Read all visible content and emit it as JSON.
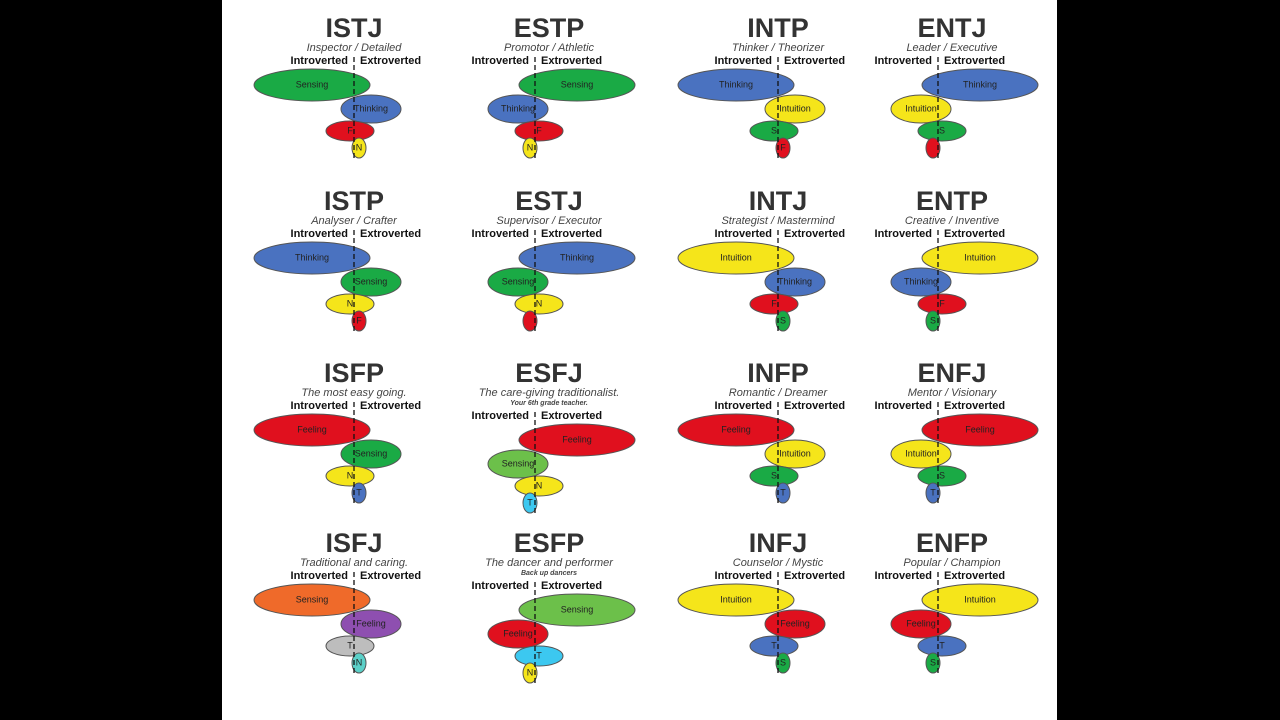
{
  "cards": [
    {
      "code": "ISTJ",
      "subtitle": "Inspector / Detailed",
      "introverted": "Introverted",
      "extroverted": "Extroverted",
      "functions": [
        {
          "label": "Sensing",
          "color": "#1aaa45"
        },
        {
          "label": "Thinking",
          "color": "#4a72c0"
        },
        {
          "label": "F",
          "color": "#e0101e"
        },
        {
          "label": "N",
          "color": "#f5e51a"
        }
      ]
    },
    {
      "code": "ESTP",
      "subtitle": "Promotor / Athletic",
      "introverted": "Introverted",
      "extroverted": "Extroverted",
      "functions": [
        {
          "label": "Sensing",
          "color": "#1aaa45"
        },
        {
          "label": "Thinking",
          "color": "#4a72c0"
        },
        {
          "label": "F",
          "color": "#e0101e"
        },
        {
          "label": "N",
          "color": "#f5e51a"
        }
      ]
    },
    {
      "code": "INTP",
      "subtitle": "Thinker / Theorizer",
      "introverted": "Introverted",
      "extroverted": "Extroverted",
      "functions": [
        {
          "label": "Thinking",
          "color": "#4a72c0"
        },
        {
          "label": "Intuition",
          "color": "#f5e51a"
        },
        {
          "label": "S",
          "color": "#1aaa45"
        },
        {
          "label": "F",
          "color": "#e0101e"
        }
      ]
    },
    {
      "code": "ENTJ",
      "subtitle": "Leader / Executive",
      "introverted": "Introverted",
      "extroverted": "Extroverted",
      "functions": [
        {
          "label": "Thinking",
          "color": "#4a72c0"
        },
        {
          "label": "Intuition",
          "color": "#f5e51a"
        },
        {
          "label": "S",
          "color": "#1aaa45"
        },
        {
          "color": "#e0101e"
        }
      ]
    },
    {
      "code": "ISTP",
      "subtitle": "Analyser / Crafter",
      "introverted": "Introverted",
      "extroverted": "Extroverted",
      "functions": [
        {
          "label": "Thinking",
          "color": "#4a72c0"
        },
        {
          "label": "Sensing",
          "color": "#1aaa45"
        },
        {
          "label": "N",
          "color": "#f5e51a"
        },
        {
          "label": "F",
          "color": "#e0101e"
        }
      ]
    },
    {
      "code": "ESTJ",
      "subtitle": "Supervisor / Executor",
      "introverted": "Introverted",
      "extroverted": "Extroverted",
      "functions": [
        {
          "label": "Thinking",
          "color": "#4a72c0"
        },
        {
          "label": "Sensing",
          "color": "#1aaa45"
        },
        {
          "label": "N",
          "color": "#f5e51a"
        },
        {
          "color": "#e0101e"
        }
      ]
    },
    {
      "code": "INTJ",
      "subtitle": "Strategist / Mastermind",
      "introverted": "Introverted",
      "extroverted": "Extroverted",
      "functions": [
        {
          "label": "Intuition",
          "color": "#f5e51a"
        },
        {
          "label": "Thinking",
          "color": "#4a72c0"
        },
        {
          "label": "F",
          "color": "#e0101e"
        },
        {
          "label": "S",
          "color": "#1aaa45"
        }
      ]
    },
    {
      "code": "ENTP",
      "subtitle": "Creative / Inventive",
      "introverted": "Introverted",
      "extroverted": "Extroverted",
      "functions": [
        {
          "label": "Intuition",
          "color": "#f5e51a"
        },
        {
          "label": "Thinking",
          "color": "#4a72c0"
        },
        {
          "label": "F",
          "color": "#e0101e"
        },
        {
          "label": "S",
          "color": "#1aaa45"
        }
      ]
    },
    {
      "code": "ISFP",
      "subtitle": "The most easy going.",
      "introverted": "Introverted",
      "extroverted": "Extroverted",
      "functions": [
        {
          "label": "Feeling",
          "color": "#e0101e"
        },
        {
          "label": "Sensing",
          "color": "#1aaa45"
        },
        {
          "label": "N",
          "color": "#f5e51a"
        },
        {
          "label": "T",
          "color": "#4a72c0"
        }
      ]
    },
    {
      "code": "ESFJ",
      "subtitle": "The care-giving traditionalist.",
      "note": "Your 6th grade teacher.",
      "introverted": "Introverted",
      "extroverted": "Extroverted",
      "functions": [
        {
          "label": "Feeling",
          "color": "#e0101e"
        },
        {
          "label": "Sensing",
          "color": "#6cc04a"
        },
        {
          "label": "N",
          "color": "#f5e51a"
        },
        {
          "label": "T",
          "color": "#3cc8f0"
        }
      ]
    },
    {
      "code": "INFP",
      "subtitle": "Romantic / Dreamer",
      "introverted": "Introverted",
      "extroverted": "Extroverted",
      "functions": [
        {
          "label": "Feeling",
          "color": "#e0101e"
        },
        {
          "label": "Intuition",
          "color": "#f5e51a"
        },
        {
          "label": "S",
          "color": "#1aaa45"
        },
        {
          "label": "T",
          "color": "#4a72c0"
        }
      ]
    },
    {
      "code": "ENFJ",
      "subtitle": "Mentor / Visionary",
      "introverted": "Introverted",
      "extroverted": "Extroverted",
      "functions": [
        {
          "label": "Feeling",
          "color": "#e0101e"
        },
        {
          "label": "Intuition",
          "color": "#f5e51a"
        },
        {
          "label": "S",
          "color": "#1aaa45"
        },
        {
          "label": "T",
          "color": "#4a72c0"
        }
      ]
    },
    {
      "code": "ISFJ",
      "subtitle": "Traditional and caring.",
      "introverted": "Introverted",
      "extroverted": "Extroverted",
      "functions": [
        {
          "label": "Sensing",
          "color": "#ef6a2a"
        },
        {
          "label": "Feeling",
          "color": "#8e4fb0"
        },
        {
          "label": "T",
          "color": "#bdbdbd"
        },
        {
          "label": "N",
          "color": "#5bd0c8"
        }
      ]
    },
    {
      "code": "ESFP",
      "subtitle": "The dancer and performer",
      "note": "Back up dancers",
      "introverted": "Introverted",
      "extroverted": "Extroverted",
      "functions": [
        {
          "label": "Sensing",
          "color": "#6cc04a"
        },
        {
          "label": "Feeling",
          "color": "#e0101e"
        },
        {
          "label": "T",
          "color": "#3cc8f0"
        },
        {
          "label": "N",
          "color": "#f5e51a"
        }
      ]
    },
    {
      "code": "INFJ",
      "subtitle": "Counselor / Mystic",
      "introverted": "Introverted",
      "extroverted": "Extroverted",
      "functions": [
        {
          "label": "Intuition",
          "color": "#f5e51a"
        },
        {
          "label": "Feeling",
          "color": "#e0101e"
        },
        {
          "label": "T",
          "color": "#4a72c0"
        },
        {
          "label": "S",
          "color": "#1aaa45"
        }
      ]
    },
    {
      "code": "ENFP",
      "subtitle": "Popular / Champion",
      "introverted": "Introverted",
      "extroverted": "Extroverted",
      "functions": [
        {
          "label": "Intuition",
          "color": "#f5e51a"
        },
        {
          "label": "Feeling",
          "color": "#e0101e"
        },
        {
          "label": "T",
          "color": "#4a72c0"
        },
        {
          "label": "S",
          "color": "#1aaa45"
        }
      ]
    }
  ]
}
